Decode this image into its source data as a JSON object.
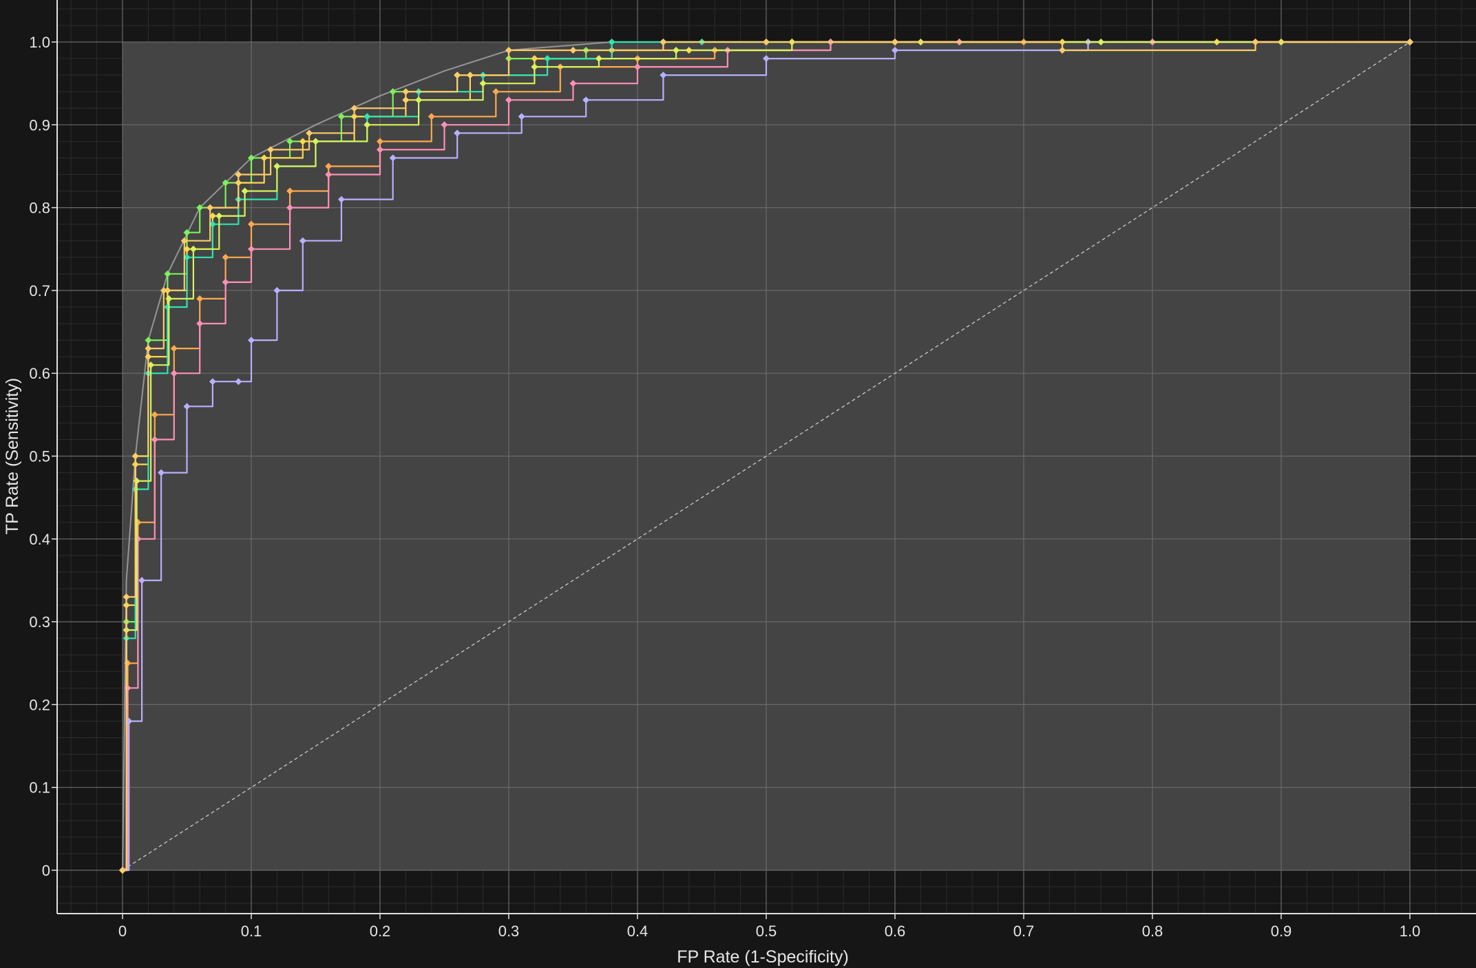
{
  "chart_data": {
    "type": "line",
    "title": "",
    "xlabel": "FP Rate (1-Specificity)",
    "ylabel": "TP Rate (Sensitivity)",
    "xlim": [
      -0.05,
      1.05
    ],
    "ylim": [
      -0.05,
      1.05
    ],
    "x_ticks": [
      "0",
      "0.1",
      "0.2",
      "0.3",
      "0.4",
      "0.5",
      "0.6",
      "0.7",
      "0.8",
      "0.9",
      "1.0"
    ],
    "y_ticks": [
      "0",
      "0.1",
      "0.2",
      "0.3",
      "0.4",
      "0.5",
      "0.6",
      "0.7",
      "0.8",
      "0.9",
      "1.0"
    ],
    "grid": true,
    "legend": "none",
    "colors": {
      "background": "#161616",
      "plot_area": "#444444",
      "grid_major": "#6a6a6a",
      "grid_minor": "#2c2c2c",
      "axis": "#e0e0e0",
      "diagonal": "#cccccc",
      "hull": "#aaaaaa"
    },
    "diagonal": {
      "x": [
        0,
        1
      ],
      "y": [
        0,
        1
      ]
    },
    "convex_hull": {
      "x": [
        0,
        0.003,
        0.01,
        0.02,
        0.035,
        0.06,
        0.1,
        0.15,
        0.2,
        0.25,
        0.3,
        0.38,
        0.5,
        1.0
      ],
      "y": [
        0,
        0.35,
        0.5,
        0.64,
        0.72,
        0.8,
        0.86,
        0.9,
        0.935,
        0.965,
        0.99,
        1.0,
        1.0,
        1.0
      ]
    },
    "series": [
      {
        "color": "#7cf25a",
        "x": [
          0,
          0.003,
          0.01,
          0.02,
          0.035,
          0.05,
          0.06,
          0.08,
          0.1,
          0.13,
          0.17,
          0.21,
          0.26,
          0.3,
          0.36,
          0.42,
          0.5,
          0.6,
          0.75,
          0.9,
          1.0
        ],
        "y": [
          0,
          0.3,
          0.5,
          0.64,
          0.72,
          0.77,
          0.8,
          0.83,
          0.86,
          0.88,
          0.91,
          0.94,
          0.96,
          0.98,
          0.99,
          1.0,
          1.0,
          1.0,
          1.0,
          1.0,
          1.0
        ]
      },
      {
        "color": "#ffd84d",
        "x": [
          0,
          0.003,
          0.01,
          0.02,
          0.035,
          0.05,
          0.07,
          0.09,
          0.11,
          0.14,
          0.18,
          0.22,
          0.27,
          0.32,
          0.38,
          0.44,
          0.52,
          0.6,
          0.73,
          0.85,
          1.0
        ],
        "y": [
          0,
          0.32,
          0.49,
          0.62,
          0.7,
          0.75,
          0.79,
          0.83,
          0.86,
          0.88,
          0.91,
          0.93,
          0.96,
          0.98,
          0.99,
          0.99,
          1.0,
          1.0,
          1.0,
          1.0,
          1.0
        ]
      },
      {
        "color": "#2ee6b0",
        "x": [
          0,
          0.003,
          0.01,
          0.02,
          0.035,
          0.05,
          0.07,
          0.09,
          0.12,
          0.15,
          0.19,
          0.23,
          0.28,
          0.33,
          0.38,
          0.45,
          0.55,
          0.65,
          0.8,
          1.0
        ],
        "y": [
          0,
          0.28,
          0.46,
          0.6,
          0.68,
          0.74,
          0.78,
          0.81,
          0.85,
          0.88,
          0.91,
          0.94,
          0.96,
          0.98,
          1.0,
          1.0,
          1.0,
          1.0,
          1.0,
          1.0
        ]
      },
      {
        "color": "#ffa94d",
        "x": [
          0,
          0.004,
          0.012,
          0.025,
          0.04,
          0.06,
          0.08,
          0.1,
          0.13,
          0.16,
          0.2,
          0.24,
          0.29,
          0.34,
          0.4,
          0.46,
          0.55,
          0.7,
          0.88,
          1.0
        ],
        "y": [
          0,
          0.25,
          0.42,
          0.55,
          0.63,
          0.69,
          0.74,
          0.78,
          0.82,
          0.85,
          0.88,
          0.91,
          0.94,
          0.97,
          0.98,
          0.99,
          1.0,
          1.0,
          1.0,
          1.0
        ]
      },
      {
        "color": "#ff8fb8",
        "x": [
          0,
          0.004,
          0.012,
          0.025,
          0.04,
          0.06,
          0.08,
          0.1,
          0.13,
          0.16,
          0.2,
          0.25,
          0.3,
          0.35,
          0.4,
          0.47,
          0.55,
          0.65,
          0.8,
          1.0
        ],
        "y": [
          0,
          0.22,
          0.4,
          0.52,
          0.6,
          0.66,
          0.71,
          0.75,
          0.8,
          0.84,
          0.87,
          0.9,
          0.93,
          0.95,
          0.97,
          0.99,
          1.0,
          1.0,
          1.0,
          1.0
        ]
      },
      {
        "color": "#b8b0ff",
        "x": [
          0,
          0.005,
          0.015,
          0.03,
          0.05,
          0.07,
          0.09,
          0.1,
          0.12,
          0.14,
          0.17,
          0.21,
          0.26,
          0.31,
          0.36,
          0.42,
          0.5,
          0.6,
          0.75,
          1.0
        ],
        "y": [
          0,
          0.18,
          0.35,
          0.48,
          0.56,
          0.59,
          0.59,
          0.64,
          0.7,
          0.76,
          0.81,
          0.86,
          0.89,
          0.91,
          0.93,
          0.96,
          0.98,
          0.99,
          1.0,
          1.0
        ]
      },
      {
        "color": "#d8f25a",
        "x": [
          0,
          0.003,
          0.011,
          0.022,
          0.036,
          0.055,
          0.075,
          0.095,
          0.12,
          0.15,
          0.19,
          0.23,
          0.28,
          0.32,
          0.37,
          0.43,
          0.52,
          0.62,
          0.76,
          0.9,
          1.0
        ],
        "y": [
          0,
          0.29,
          0.47,
          0.61,
          0.69,
          0.75,
          0.79,
          0.82,
          0.85,
          0.88,
          0.9,
          0.93,
          0.95,
          0.97,
          0.98,
          0.99,
          1.0,
          1.0,
          1.0,
          1.0,
          1.0
        ]
      },
      {
        "color": "#ffcc66",
        "x": [
          0,
          0.003,
          0.01,
          0.02,
          0.032,
          0.048,
          0.068,
          0.09,
          0.115,
          0.145,
          0.18,
          0.22,
          0.26,
          0.3,
          0.35,
          0.42,
          0.5,
          0.6,
          0.73,
          0.88,
          1.0
        ],
        "y": [
          0,
          0.33,
          0.5,
          0.63,
          0.7,
          0.76,
          0.8,
          0.84,
          0.87,
          0.89,
          0.92,
          0.94,
          0.96,
          0.99,
          0.99,
          1.0,
          1.0,
          1.0,
          0.99,
          1.0,
          1.0
        ]
      }
    ]
  }
}
